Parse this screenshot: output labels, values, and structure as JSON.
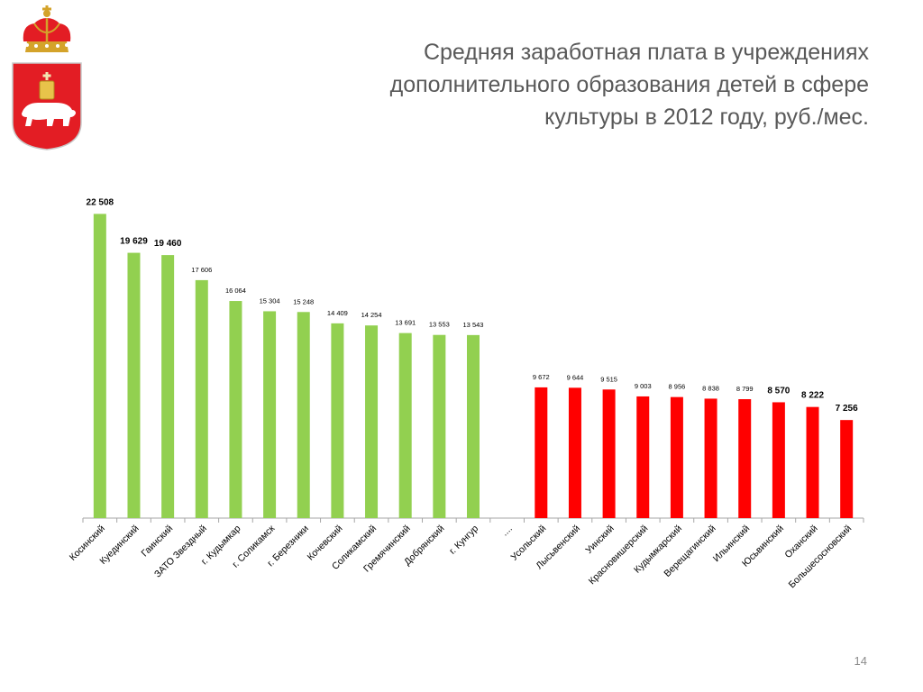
{
  "slide": {
    "title": "Средняя заработная плата в учреждениях дополнительного образования детей в сфере культуры в 2012 году, руб./мес.",
    "page_number": "14"
  },
  "colors": {
    "above_group": "#92d050",
    "below_group": "#ff0000",
    "axis": "#a6a6a6",
    "text": "#595959"
  },
  "chart_data": {
    "type": "bar",
    "title": "Средняя заработная плата в учреждениях дополнительного образования детей в сфере культуры в 2012 году, руб./мес.",
    "xlabel": "",
    "ylabel": "",
    "ylim": [
      0,
      24000
    ],
    "grid": false,
    "legend": "none",
    "categories": [
      "Косинский",
      "Куединский",
      "Гаинский",
      "ЗАТО Звездный",
      "г. Кудымкар",
      "г. Соликамск",
      "г. Березники",
      "Кочевский",
      "Соликамский",
      "Гремячинский",
      "Добрянский",
      "г. Кунгур",
      "....",
      "Усольский",
      "Лысьвенский",
      "Уинский",
      "Красновишерский",
      "Кудымкарский",
      "Верещагинский",
      "Ильинский",
      "Юсьвинский",
      "Оханский",
      "Большесосновский"
    ],
    "values": [
      22508,
      19629,
      19460,
      17606,
      16064,
      15304,
      15248,
      14409,
      14254,
      13691,
      13553,
      13543,
      null,
      9672,
      9644,
      9515,
      9003,
      8956,
      8838,
      8799,
      8570,
      8222,
      7256
    ],
    "value_labels": [
      "22 508",
      "19 629",
      "19 460",
      "17 606",
      "16 064",
      "15 304",
      "15 248",
      "14 409",
      "14 254",
      "13 691",
      "13 553",
      "13 543",
      "",
      "9 672",
      "9 644",
      "9 515",
      "9 003",
      "8 956",
      "8 838",
      "8 799",
      "8 570",
      "8 222",
      "7 256"
    ],
    "bold_labels": [
      true,
      true,
      true,
      false,
      false,
      false,
      false,
      false,
      false,
      false,
      false,
      false,
      false,
      false,
      false,
      false,
      false,
      false,
      false,
      false,
      true,
      true,
      true
    ],
    "bar_groups": [
      "above",
      "above",
      "above",
      "above",
      "above",
      "above",
      "above",
      "above",
      "above",
      "above",
      "above",
      "above",
      "none",
      "below",
      "below",
      "below",
      "below",
      "below",
      "below",
      "below",
      "below",
      "below",
      "below"
    ]
  }
}
